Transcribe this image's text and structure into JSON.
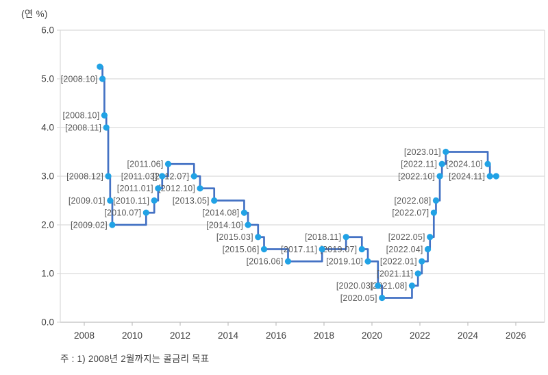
{
  "chart_data": {
    "type": "line",
    "line_style": "step-after",
    "unit_label": "(연 %)",
    "footnote": "주 : 1) 2008년 2월까지는 콜금리 목표",
    "ylim": [
      0.0,
      6.0
    ],
    "yticks": [
      "0.0",
      "1.0",
      "2.0",
      "3.0",
      "4.0",
      "5.0",
      "6.0"
    ],
    "xticks": [
      2008,
      2010,
      2012,
      2014,
      2016,
      2018,
      2020,
      2022,
      2024,
      2026
    ],
    "xlim_years": [
      2007.0,
      2027.2
    ],
    "grid": "horizontal",
    "legend": "none",
    "points": [
      {
        "label": null,
        "x_year": 2008.65,
        "rate": 5.25
      },
      {
        "label": "[2008.10]",
        "x_year": 2008.76,
        "rate": 5.0
      },
      {
        "label": "[2008.10]",
        "x_year": 2008.84,
        "rate": 4.25
      },
      {
        "label": "[2008.11]",
        "x_year": 2008.92,
        "rate": 4.0
      },
      {
        "label": "[2008.12]",
        "x_year": 2009.0,
        "rate": 3.0
      },
      {
        "label": "[2009.01]",
        "x_year": 2009.08,
        "rate": 2.5
      },
      {
        "label": "[2009.02]",
        "x_year": 2009.17,
        "rate": 2.0
      },
      {
        "label": "[2010.07]",
        "x_year": 2010.58,
        "rate": 2.25
      },
      {
        "label": "[2010.11]",
        "x_year": 2010.92,
        "rate": 2.5
      },
      {
        "label": "[2011.01]",
        "x_year": 2011.08,
        "rate": 2.75
      },
      {
        "label": "[2011.03]",
        "x_year": 2011.25,
        "rate": 3.0
      },
      {
        "label": "[2011.06]",
        "x_year": 2011.5,
        "rate": 3.25
      },
      {
        "label": "[2012.07]",
        "x_year": 2012.58,
        "rate": 3.0
      },
      {
        "label": "[2012.10]",
        "x_year": 2012.83,
        "rate": 2.75
      },
      {
        "label": "[2013.05]",
        "x_year": 2013.42,
        "rate": 2.5
      },
      {
        "label": "[2014.08]",
        "x_year": 2014.67,
        "rate": 2.25
      },
      {
        "label": "[2014.10]",
        "x_year": 2014.83,
        "rate": 2.0
      },
      {
        "label": "[2015.03]",
        "x_year": 2015.25,
        "rate": 1.75
      },
      {
        "label": "[2015.06]",
        "x_year": 2015.5,
        "rate": 1.5
      },
      {
        "label": "[2016.06]",
        "x_year": 2016.5,
        "rate": 1.25
      },
      {
        "label": "[2017.11]",
        "x_year": 2017.92,
        "rate": 1.5
      },
      {
        "label": "[2018.11]",
        "x_year": 2018.92,
        "rate": 1.75
      },
      {
        "label": "[2019.07]",
        "x_year": 2019.58,
        "rate": 1.5
      },
      {
        "label": "[2019.10]",
        "x_year": 2019.83,
        "rate": 1.25
      },
      {
        "label": "[2020.03]",
        "x_year": 2020.25,
        "rate": 0.75
      },
      {
        "label": "[2020.05]",
        "x_year": 2020.42,
        "rate": 0.5
      },
      {
        "label": "[2021.08]",
        "x_year": 2021.67,
        "rate": 0.75
      },
      {
        "label": "[2021.11]",
        "x_year": 2021.92,
        "rate": 1.0
      },
      {
        "label": "[2022.01]",
        "x_year": 2022.08,
        "rate": 1.25
      },
      {
        "label": "[2022.04]",
        "x_year": 2022.33,
        "rate": 1.5
      },
      {
        "label": "[2022.05]",
        "x_year": 2022.42,
        "rate": 1.75
      },
      {
        "label": "[2022.07]",
        "x_year": 2022.58,
        "rate": 2.25
      },
      {
        "label": "[2022.08]",
        "x_year": 2022.67,
        "rate": 2.5
      },
      {
        "label": "[2022.10]",
        "x_year": 2022.83,
        "rate": 3.0
      },
      {
        "label": "[2022.11]",
        "x_year": 2022.92,
        "rate": 3.25
      },
      {
        "label": "[2023.01]",
        "x_year": 2023.08,
        "rate": 3.5
      },
      {
        "label": "[2024.10]",
        "x_year": 2024.83,
        "rate": 3.25
      },
      {
        "label": "[2024.11]",
        "x_year": 2024.92,
        "rate": 3.0
      },
      {
        "label": null,
        "x_year": 2025.18,
        "rate": 3.0
      }
    ],
    "colors": {
      "line": "#4472C4",
      "marker": "#21A2E5",
      "gridline": "#D9D9D9",
      "axis": "#BFBFBF",
      "point_label": "#595959",
      "tick_label": "#404040"
    }
  }
}
